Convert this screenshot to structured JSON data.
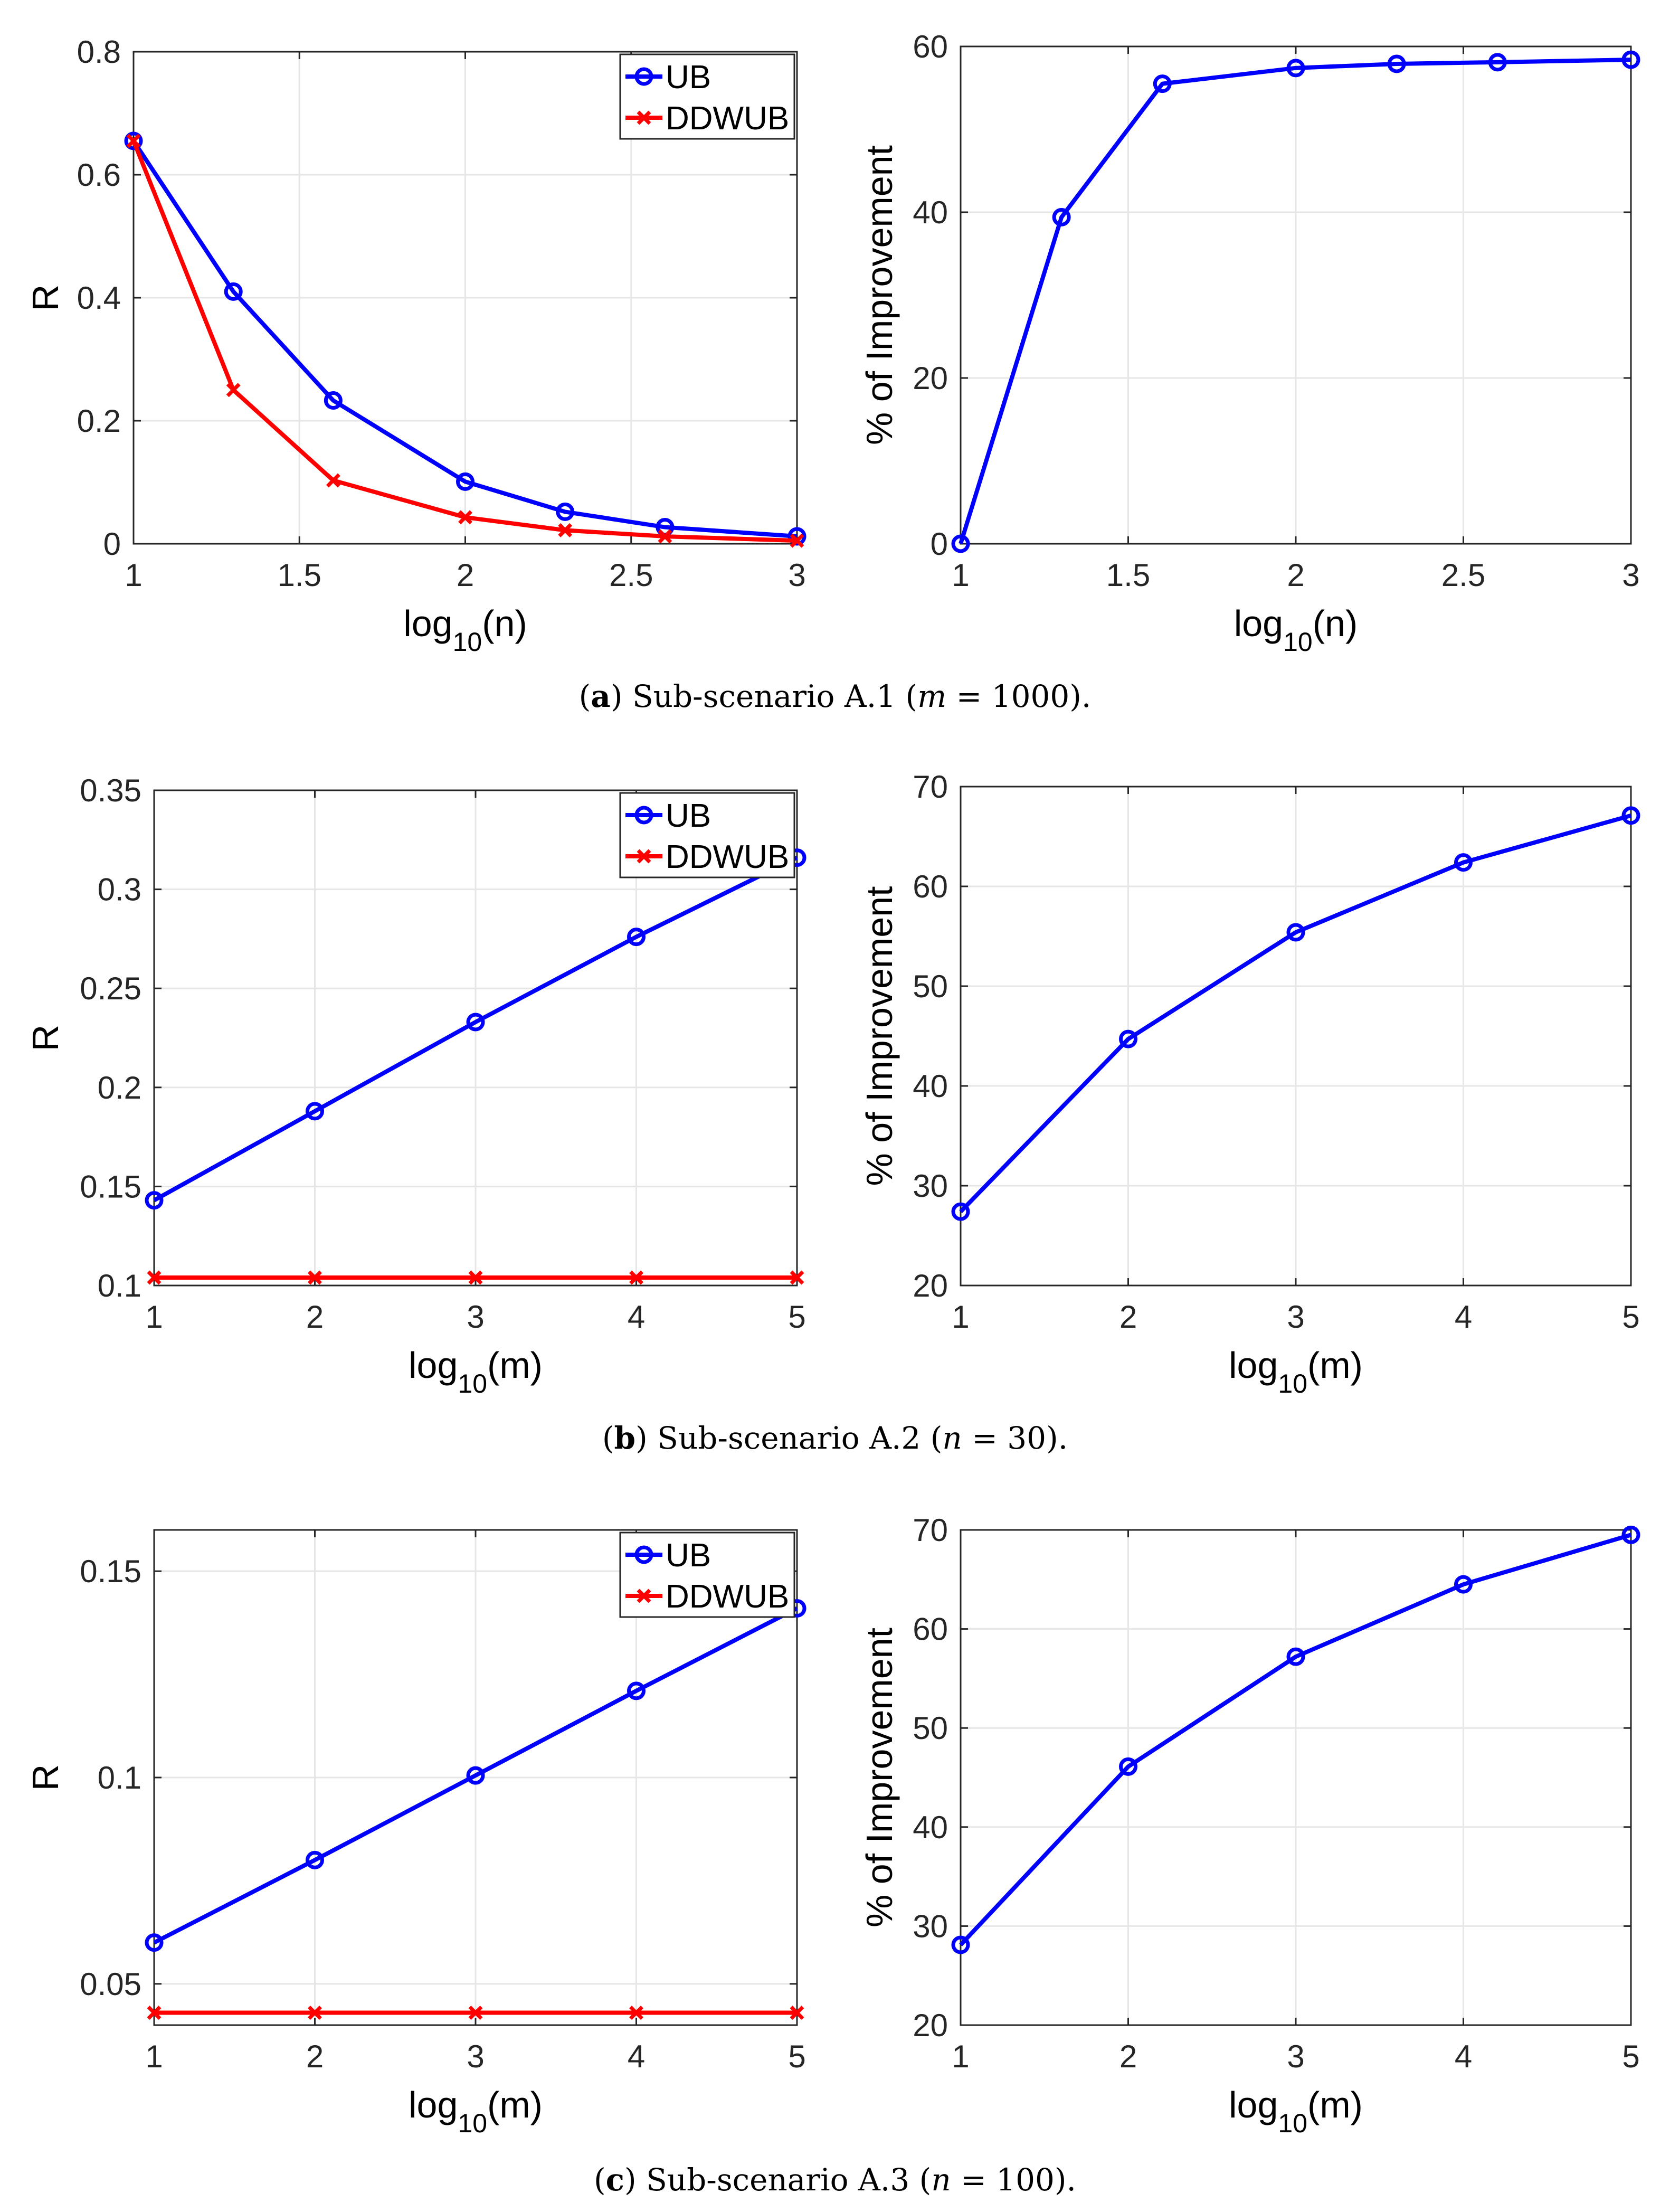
{
  "colors": {
    "ub": "#0000ff",
    "ddwub": "#ff0000",
    "grid": "#e6e6e6",
    "axis": "#262626"
  },
  "chart_data": [
    {
      "type": "line",
      "panel": "a-left",
      "x": [
        1,
        1.301,
        1.602,
        2,
        2.301,
        2.602,
        3
      ],
      "series": [
        {
          "name": "UB",
          "marker": "circle",
          "values": [
            0.655,
            0.41,
            0.233,
            0.101,
            0.052,
            0.027,
            0.012
          ]
        },
        {
          "name": "DDWUB",
          "marker": "x",
          "values": [
            0.655,
            0.25,
            0.103,
            0.043,
            0.022,
            0.012,
            0.005
          ]
        }
      ],
      "xlabel": {
        "base": "log",
        "sub": "10",
        "arg": "(n)"
      },
      "ylabel": "R",
      "xlim": [
        1,
        3
      ],
      "ylim": [
        0,
        0.8
      ],
      "xticks": [
        1,
        1.5,
        2,
        2.5,
        3
      ],
      "xtick_labels": [
        "1",
        "1.5",
        "2",
        "2.5",
        "3"
      ],
      "yticks": [
        0,
        0.2,
        0.4,
        0.6,
        0.8
      ],
      "ytick_labels": [
        "0",
        "0.2",
        "0.4",
        "0.6",
        "0.8"
      ],
      "grid": true,
      "legend": "top-right"
    },
    {
      "type": "line",
      "panel": "a-right",
      "x": [
        1,
        1.301,
        1.602,
        2,
        2.301,
        2.602,
        3
      ],
      "series": [
        {
          "name": "% of Improvement",
          "marker": "circle",
          "values": [
            0,
            39.4,
            55.5,
            57.4,
            57.9,
            58.1,
            58.4
          ]
        }
      ],
      "xlabel": {
        "base": "log",
        "sub": "10",
        "arg": "(n)"
      },
      "ylabel": "% of Improvement",
      "xlim": [
        1,
        3
      ],
      "ylim": [
        0,
        60
      ],
      "xticks": [
        1,
        1.5,
        2,
        2.5,
        3
      ],
      "xtick_labels": [
        "1",
        "1.5",
        "2",
        "2.5",
        "3"
      ],
      "yticks": [
        0,
        20,
        40,
        60
      ],
      "ytick_labels": [
        "0",
        "20",
        "40",
        "60"
      ],
      "grid": true
    },
    {
      "type": "line",
      "panel": "b-left",
      "x": [
        1,
        2,
        3,
        4,
        5
      ],
      "series": [
        {
          "name": "UB",
          "marker": "circle",
          "values": [
            0.143,
            0.188,
            0.233,
            0.276,
            0.316
          ]
        },
        {
          "name": "DDWUB",
          "marker": "x",
          "values": [
            0.104,
            0.104,
            0.104,
            0.104,
            0.104
          ]
        }
      ],
      "xlabel": {
        "base": "log",
        "sub": "10",
        "arg": "(m)"
      },
      "ylabel": "R",
      "xlim": [
        1,
        5
      ],
      "ylim": [
        0.1,
        0.35
      ],
      "xticks": [
        1,
        2,
        3,
        4,
        5
      ],
      "xtick_labels": [
        "1",
        "2",
        "3",
        "4",
        "5"
      ],
      "yticks": [
        0.1,
        0.15,
        0.2,
        0.25,
        0.3,
        0.35
      ],
      "ytick_labels": [
        "0.1",
        "0.15",
        "0.2",
        "0.25",
        "0.3",
        "0.35"
      ],
      "grid": true,
      "legend": "top-right"
    },
    {
      "type": "line",
      "panel": "b-right",
      "x": [
        1,
        2,
        3,
        4,
        5
      ],
      "series": [
        {
          "name": "% of Improvement",
          "marker": "circle",
          "values": [
            27.4,
            44.7,
            55.4,
            62.4,
            67.1
          ]
        }
      ],
      "xlabel": {
        "base": "log",
        "sub": "10",
        "arg": "(m)"
      },
      "ylabel": "% of Improvement",
      "xlim": [
        1,
        5
      ],
      "ylim": [
        20,
        70
      ],
      "xticks": [
        1,
        2,
        3,
        4,
        5
      ],
      "xtick_labels": [
        "1",
        "2",
        "3",
        "4",
        "5"
      ],
      "yticks": [
        20,
        30,
        40,
        50,
        60,
        70
      ],
      "ytick_labels": [
        "20",
        "30",
        "40",
        "50",
        "60",
        "70"
      ],
      "grid": true
    },
    {
      "type": "line",
      "panel": "c-left",
      "x": [
        1,
        2,
        3,
        4,
        5
      ],
      "series": [
        {
          "name": "UB",
          "marker": "circle",
          "values": [
            0.06,
            0.08,
            0.1005,
            0.121,
            0.141
          ]
        },
        {
          "name": "DDWUB",
          "marker": "x",
          "values": [
            0.043,
            0.043,
            0.043,
            0.043,
            0.043
          ]
        }
      ],
      "xlabel": {
        "base": "log",
        "sub": "10",
        "arg": "(m)"
      },
      "ylabel": "R",
      "xlim": [
        1,
        5
      ],
      "ylim": [
        0.04,
        0.16
      ],
      "xticks": [
        1,
        2,
        3,
        4,
        5
      ],
      "xtick_labels": [
        "1",
        "2",
        "3",
        "4",
        "5"
      ],
      "yticks": [
        0.05,
        0.1,
        0.15
      ],
      "ytick_labels": [
        "0.05",
        "0.1",
        "0.15"
      ],
      "grid": true,
      "legend": "top-right"
    },
    {
      "type": "line",
      "panel": "c-right",
      "x": [
        1,
        2,
        3,
        4,
        5
      ],
      "series": [
        {
          "name": "% of Improvement",
          "marker": "circle",
          "values": [
            28.1,
            46.1,
            57.2,
            64.5,
            69.5
          ]
        }
      ],
      "xlabel": {
        "base": "log",
        "sub": "10",
        "arg": "(m)"
      },
      "ylabel": "% of Improvement",
      "xlim": [
        1,
        5
      ],
      "ylim": [
        20,
        70
      ],
      "xticks": [
        1,
        2,
        3,
        4,
        5
      ],
      "xtick_labels": [
        "1",
        "2",
        "3",
        "4",
        "5"
      ],
      "yticks": [
        20,
        30,
        40,
        50,
        60,
        70
      ],
      "ytick_labels": [
        "20",
        "30",
        "40",
        "50",
        "60",
        "70"
      ],
      "grid": true
    }
  ],
  "captions": [
    {
      "letter": "a",
      "text": "Sub-scenario A.1",
      "var": "m",
      "value": "1000"
    },
    {
      "letter": "b",
      "text": "Sub-scenario A.2",
      "var": "n",
      "value": "30"
    },
    {
      "letter": "c",
      "text": "Sub-scenario A.3",
      "var": "n",
      "value": "100"
    }
  ]
}
